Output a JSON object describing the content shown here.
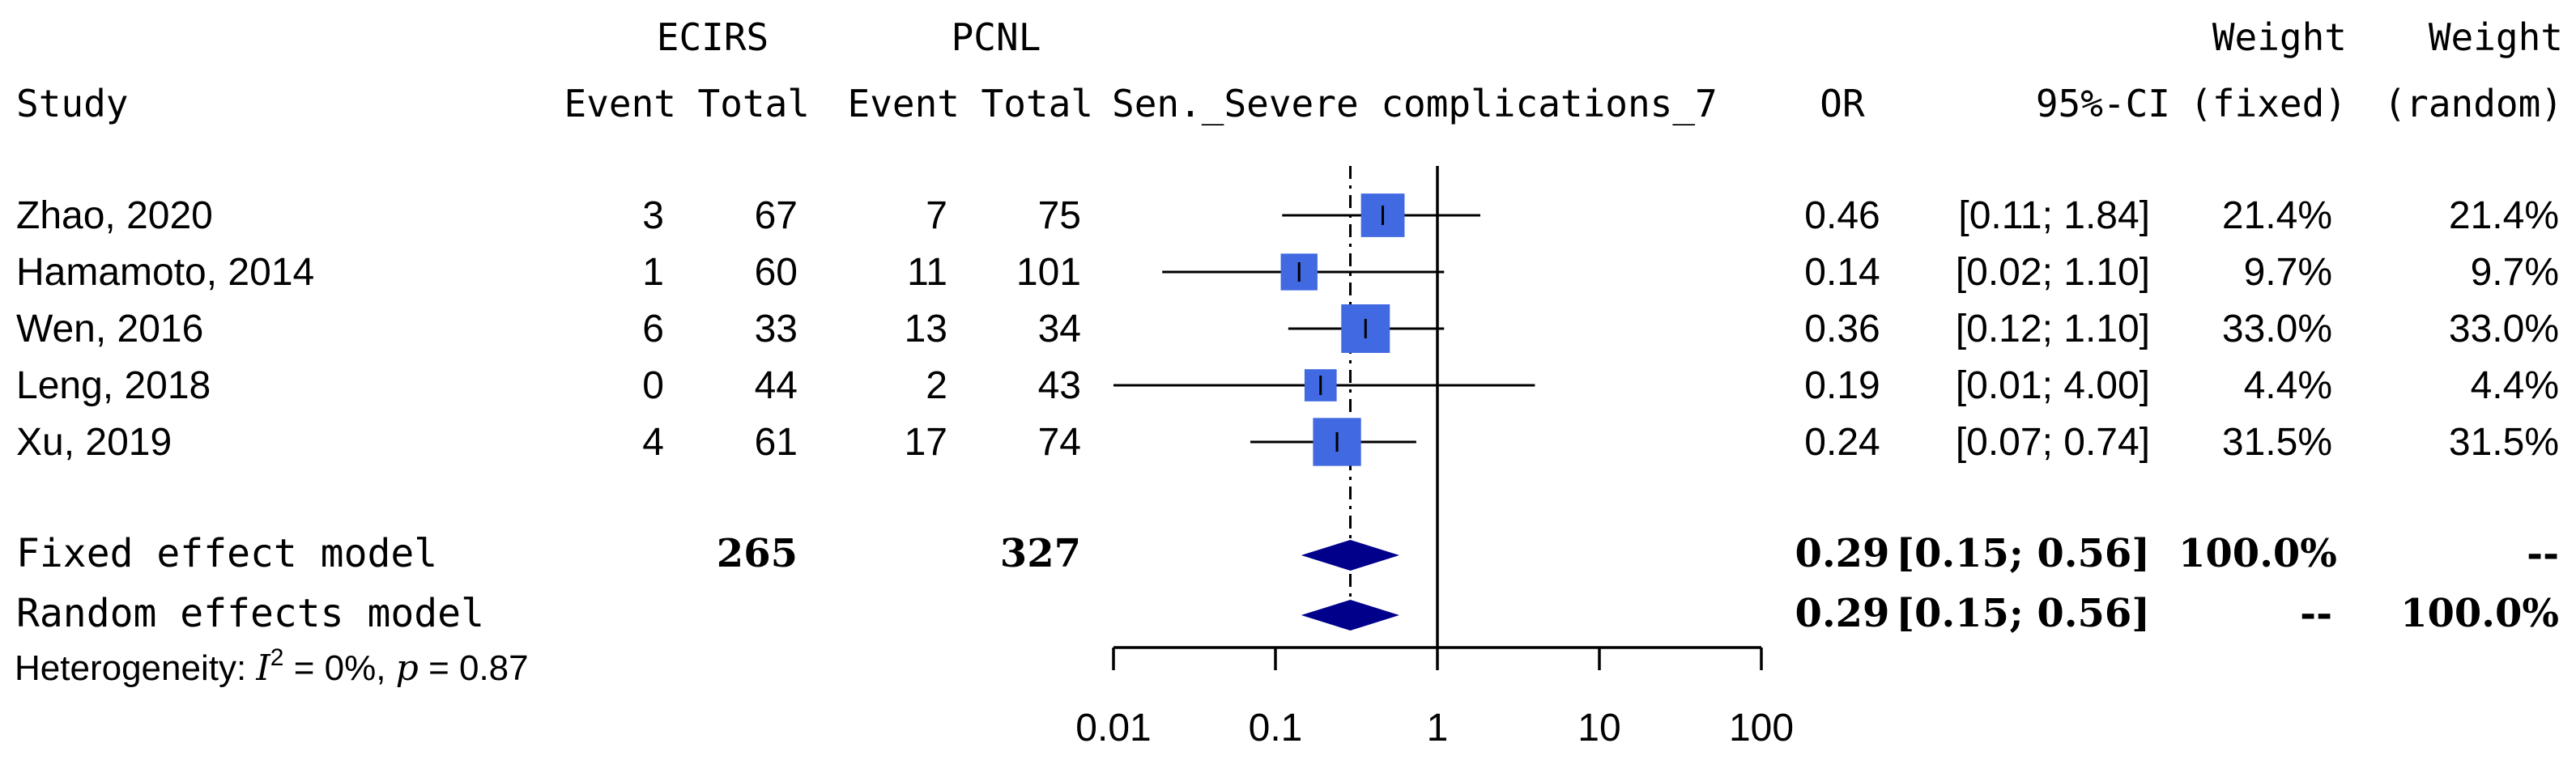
{
  "colors": {
    "box": "#4169E1",
    "diamond": "#00008B",
    "line": "#000000"
  },
  "header": {
    "group1": "ECIRS",
    "group2": "PCNL",
    "study": "Study",
    "event1": "Event",
    "total1": "Total",
    "event2": "Event",
    "total2": "Total",
    "outcome": "Sen._Severe complications_7",
    "or": "OR",
    "ci": "95%-CI",
    "weight_fixed_1": "Weight",
    "weight_fixed_2": "(fixed)",
    "weight_random_1": "Weight",
    "weight_random_2": "(random)"
  },
  "chart_data": {
    "type": "forest",
    "xscale": "log",
    "xlim": [
      0.01,
      100
    ],
    "xticks": [
      0.01,
      0.1,
      1,
      10,
      100
    ],
    "xtick_labels": [
      "0.01",
      "0.1",
      "1",
      "10",
      "100"
    ],
    "reference_line": 1,
    "pooled_line": 0.29,
    "studies": [
      {
        "study": "Zhao, 2020",
        "e1": "3",
        "n1": "67",
        "e2": "7",
        "n2": "75",
        "or": 0.46,
        "lo": 0.11,
        "hi": 1.84,
        "or_label": "0.46",
        "ci_label": "[0.11; 1.84]",
        "w_fixed": "21.4%",
        "w_random": "21.4%",
        "weight": 21.4
      },
      {
        "study": "Hamamoto, 2014",
        "e1": "1",
        "n1": "60",
        "e2": "11",
        "n2": "101",
        "or": 0.14,
        "lo": 0.02,
        "hi": 1.1,
        "or_label": "0.14",
        "ci_label": "[0.02; 1.10]",
        "w_fixed": "9.7%",
        "w_random": "9.7%",
        "weight": 9.7
      },
      {
        "study": "Wen, 2016",
        "e1": "6",
        "n1": "33",
        "e2": "13",
        "n2": "34",
        "or": 0.36,
        "lo": 0.12,
        "hi": 1.1,
        "or_label": "0.36",
        "ci_label": "[0.12; 1.10]",
        "w_fixed": "33.0%",
        "w_random": "33.0%",
        "weight": 33.0
      },
      {
        "study": "Leng, 2018",
        "e1": "0",
        "n1": "44",
        "e2": "2",
        "n2": "43",
        "or": 0.19,
        "lo": 0.01,
        "hi": 4.0,
        "or_label": "0.19",
        "ci_label": "[0.01; 4.00]",
        "w_fixed": "4.4%",
        "w_random": "4.4%",
        "weight": 4.4
      },
      {
        "study": "Xu, 2019",
        "e1": "4",
        "n1": "61",
        "e2": "17",
        "n2": "74",
        "or": 0.24,
        "lo": 0.07,
        "hi": 0.74,
        "or_label": "0.24",
        "ci_label": "[0.07; 0.74]",
        "w_fixed": "31.5%",
        "w_random": "31.5%",
        "weight": 31.5
      }
    ],
    "fixed": {
      "label": "Fixed effect model",
      "n1": "265",
      "n2": "327",
      "or": 0.29,
      "lo": 0.15,
      "hi": 0.56,
      "or_label": "0.29",
      "ci_label": "[0.15; 0.56]",
      "w_fixed": "100.0%",
      "w_random": "--"
    },
    "random": {
      "label": "Random effects model",
      "or": 0.29,
      "lo": 0.15,
      "hi": 0.56,
      "or_label": "0.29",
      "ci_label": "[0.15; 0.56]",
      "w_fixed": "--",
      "w_random": "100.0%"
    },
    "heterogeneity": {
      "prefix": "Heterogeneity: ",
      "i2_symbol": "I",
      "i2_sup": "2",
      "i2_value": " = 0%, ",
      "p_symbol": "p",
      "p_value": " = 0.87"
    }
  }
}
